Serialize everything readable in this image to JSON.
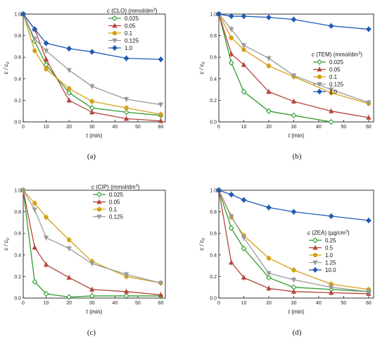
{
  "chart_data": [
    {
      "type": "line",
      "panel_label": "(a)",
      "xlabel_var": "t",
      "xlabel_unit": "(min)",
      "ylabel_num": "c",
      "ylabel_den": "c",
      "ylabel_sub": "0",
      "legend_title_var": "c",
      "legend_title_rest": "(CLO) (mmol/dm",
      "legend_title_sup": "3",
      "legend_title_end": ")",
      "xlim": [
        0,
        62
      ],
      "ylim": [
        0,
        1.0
      ],
      "xticks": [
        "0",
        "10",
        "20",
        "30",
        "40",
        "50",
        "60"
      ],
      "yticks": [
        "0.0",
        "0.2",
        "0.4",
        "0.6",
        "0.8",
        "1.0"
      ],
      "legend_position": "top-right",
      "x": [
        0,
        5,
        10,
        20,
        30,
        45,
        60
      ],
      "series": [
        {
          "name": "0.025",
          "color": "#2e9e2e",
          "marker": "diamond-open",
          "values": [
            1.0,
            0.75,
            0.53,
            0.27,
            0.13,
            0.09,
            0.06
          ]
        },
        {
          "name": "0.05",
          "color": "#b5443a",
          "marker": "triangle-up",
          "values": [
            1.0,
            0.86,
            0.58,
            0.2,
            0.09,
            0.03,
            0.01
          ]
        },
        {
          "name": "0.1",
          "color": "#d4a017",
          "marker": "circle",
          "values": [
            1.0,
            0.66,
            0.49,
            0.31,
            0.19,
            0.13,
            0.07
          ]
        },
        {
          "name": "0.125",
          "color": "#9a9a9a",
          "marker": "triangle-down",
          "values": [
            1.0,
            0.77,
            0.66,
            0.48,
            0.33,
            0.21,
            0.16
          ]
        },
        {
          "name": "1.0",
          "color": "#1f5bb5",
          "marker": "diamond",
          "values": [
            1.0,
            0.86,
            0.73,
            0.68,
            0.65,
            0.59,
            0.58
          ]
        }
      ]
    },
    {
      "type": "line",
      "panel_label": "(b)",
      "xlabel_var": "t",
      "xlabel_unit": "(min)",
      "ylabel_num": "c",
      "ylabel_den": "c",
      "ylabel_sub": "0",
      "legend_title_var": "c",
      "legend_title_rest": "(TEM) (mmol/dm",
      "legend_title_sup": "3",
      "legend_title_end": ")",
      "xlim": [
        0,
        62
      ],
      "ylim": [
        0,
        1.0
      ],
      "xticks": [
        "0",
        "10",
        "20",
        "30",
        "40",
        "50",
        "60"
      ],
      "yticks": [
        "0.0",
        "0.2",
        "0.4",
        "0.6",
        "0.8",
        "1.0"
      ],
      "legend_position": "middle-right",
      "x": [
        0,
        5,
        10,
        20,
        30,
        45,
        60
      ],
      "series": [
        {
          "name": "0.025",
          "color": "#2e9e2e",
          "marker": "diamond-open",
          "values": [
            1.0,
            0.55,
            0.28,
            0.1,
            0.06,
            0.0,
            null
          ]
        },
        {
          "name": "0.05",
          "color": "#b5443a",
          "marker": "triangle-up",
          "values": [
            1.0,
            0.63,
            0.53,
            0.28,
            0.19,
            0.1,
            0.04
          ]
        },
        {
          "name": "0.1",
          "color": "#d4a017",
          "marker": "circle",
          "values": [
            1.0,
            0.78,
            0.67,
            0.52,
            0.42,
            0.27,
            0.17
          ]
        },
        {
          "name": "0.125",
          "color": "#9a9a9a",
          "marker": "triangle-down",
          "values": [
            1.0,
            0.86,
            0.71,
            0.59,
            0.43,
            0.3,
            0.18
          ]
        },
        {
          "name": "1.0",
          "color": "#1f5bb5",
          "marker": "diamond",
          "values": [
            1.0,
            0.98,
            0.98,
            0.97,
            0.95,
            0.89,
            0.86
          ]
        }
      ]
    },
    {
      "type": "line",
      "panel_label": "(c)",
      "xlabel_var": "t",
      "xlabel_unit": "(min)",
      "ylabel_num": "c",
      "ylabel_den": "c",
      "ylabel_sub": "0",
      "legend_title_var": "c",
      "legend_title_rest": "(CIP) (mmol/dm",
      "legend_title_sup": "3",
      "legend_title_end": ")",
      "xlim": [
        0,
        62
      ],
      "ylim": [
        0,
        1.0
      ],
      "xticks": [
        "0",
        "10",
        "20",
        "30",
        "40",
        "50",
        "60"
      ],
      "yticks": [
        "0.0",
        "0.2",
        "0.4",
        "0.6",
        "0.8",
        "1.0"
      ],
      "legend_position": "top-right",
      "x": [
        0,
        5,
        10,
        20,
        30,
        45,
        60
      ],
      "series": [
        {
          "name": "0.025",
          "color": "#2e9e2e",
          "marker": "diamond-open",
          "values": [
            1.0,
            0.15,
            0.04,
            0.01,
            0.02,
            0.02,
            0.02
          ]
        },
        {
          "name": "0.05",
          "color": "#b5443a",
          "marker": "triangle-up",
          "values": [
            1.0,
            0.47,
            0.31,
            0.19,
            0.08,
            0.06,
            0.03
          ]
        },
        {
          "name": "0.1",
          "color": "#d4a017",
          "marker": "circle",
          "values": [
            1.0,
            0.88,
            0.75,
            0.54,
            0.34,
            0.2,
            0.14
          ]
        },
        {
          "name": "0.125",
          "color": "#9a9a9a",
          "marker": "triangle-down",
          "values": [
            1.0,
            0.82,
            0.56,
            0.46,
            0.32,
            0.22,
            0.14
          ]
        }
      ]
    },
    {
      "type": "line",
      "panel_label": "(d)",
      "xlabel_var": "t",
      "xlabel_unit": "(min)",
      "ylabel_num": "c",
      "ylabel_den": "c",
      "ylabel_sub": "0",
      "legend_title_var": "c",
      "legend_title_rest": "(ZEA) (µg/cm",
      "legend_title_sup": "3",
      "legend_title_end": ")",
      "xlim": [
        0,
        62
      ],
      "ylim": [
        0,
        1.0
      ],
      "xticks": [
        "0",
        "10",
        "20",
        "30",
        "40",
        "50",
        "60"
      ],
      "yticks": [
        "0.0",
        "0.2",
        "0.4",
        "0.6",
        "0.8",
        "1.0"
      ],
      "legend_position": "middle-right",
      "x": [
        0,
        5,
        10,
        20,
        30,
        45,
        60
      ],
      "series": [
        {
          "name": "0.25",
          "color": "#2e9e2e",
          "marker": "diamond-open",
          "values": [
            1.0,
            0.65,
            0.46,
            0.19,
            0.1,
            0.08,
            0.06
          ]
        },
        {
          "name": "0.5",
          "color": "#b5443a",
          "marker": "triangle-up",
          "values": [
            1.0,
            0.33,
            0.19,
            0.09,
            0.06,
            0.05,
            0.04
          ]
        },
        {
          "name": "1.0",
          "color": "#d4a017",
          "marker": "circle",
          "values": [
            1.0,
            0.75,
            0.58,
            0.37,
            0.26,
            0.13,
            0.08
          ]
        },
        {
          "name": "1.25",
          "color": "#9a9a9a",
          "marker": "triangle-down",
          "values": [
            1.0,
            0.76,
            0.56,
            0.23,
            0.17,
            0.1,
            0.06
          ]
        },
        {
          "name": "10.0",
          "color": "#1f5bb5",
          "marker": "diamond",
          "values": [
            1.0,
            0.96,
            0.91,
            0.84,
            0.8,
            0.76,
            0.72
          ]
        }
      ]
    }
  ]
}
